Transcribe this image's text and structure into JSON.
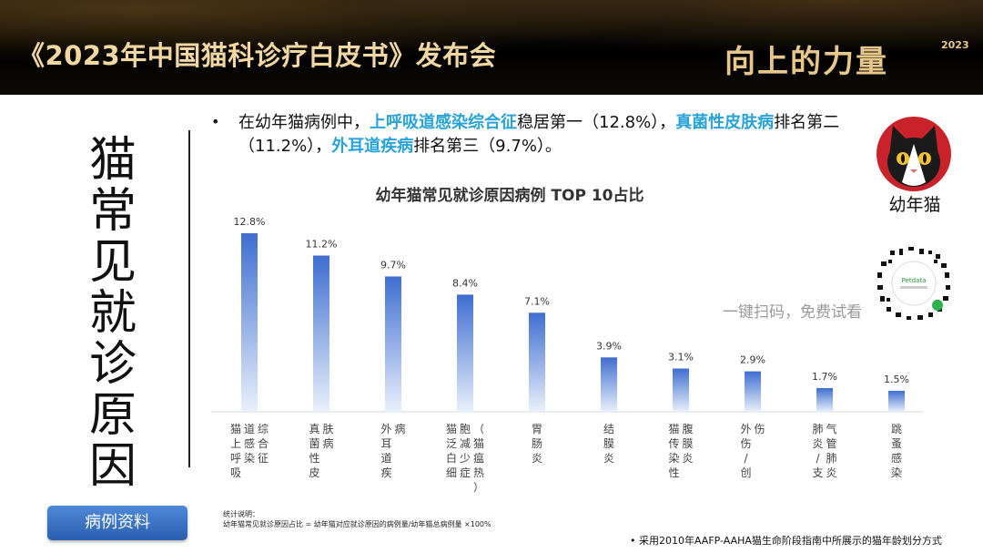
{
  "header": {
    "title": "《2023年中国猫科诊疗白皮书》发布会",
    "brand": "向上的力量",
    "brand_year": "2023"
  },
  "side_title": "猫常见就诊原因",
  "intro": {
    "bullet": "•",
    "p1": "在幼年猫病例中，",
    "h1": "上呼吸道感染综合征",
    "p2": "稳居第一（12.8%），",
    "h2": "真菌性皮肤病",
    "p3": "排名第二（11.2%），",
    "h3": "外耳道疾病",
    "p4": "排名第三（9.7%）。"
  },
  "avatar": {
    "label": "幼年猫",
    "icon": "cat-face-icon"
  },
  "qr": {
    "caption": "一键扫码，免费试看",
    "inner_text": "Petdata"
  },
  "colors": {
    "accent": "#29a3d8",
    "bar_top": "#3f6ed0",
    "bar_bottom": "#e9f0fb",
    "header_gold": "#f1d7a1"
  },
  "chart_data": {
    "type": "bar",
    "title": "幼年猫常见就诊原因病例 TOP 10占比",
    "categories": [
      [
        "猫上呼吸",
        "道感染",
        "综合征"
      ],
      [
        "真菌性皮",
        "肤病"
      ],
      [
        "外耳道疾",
        "病"
      ],
      [
        "猫泛白细",
        "胞减少症",
        "（猫瘟热）"
      ],
      [
        "胃肠炎"
      ],
      [
        "结膜炎"
      ],
      [
        "猫传染性",
        "腹膜炎"
      ],
      [
        "外伤/创",
        "伤"
      ],
      [
        "肺炎/支",
        "气管肺炎"
      ],
      [
        "跳蚤感染"
      ]
    ],
    "values": [
      12.8,
      11.2,
      9.7,
      8.4,
      7.1,
      3.9,
      3.1,
      2.9,
      1.7,
      1.5
    ],
    "value_labels": [
      "12.8%",
      "11.2%",
      "9.7%",
      "8.4%",
      "7.1%",
      "3.9%",
      "3.1%",
      "2.9%",
      "1.7%",
      "1.5%"
    ],
    "ylim": [
      0,
      14.5
    ],
    "grid": false,
    "legend": "none"
  },
  "notes": {
    "title": "统计说明：",
    "text": "幼年猫常见就诊原因占比 = 幼年猫对应就诊原因的病例量/幼年猫总病例量 ×100%"
  },
  "button_label": "病例资料",
  "footnote": "•  采用2010年AAFP-AAHA猫生命阶段指南中所展示的猫年龄划分方式"
}
